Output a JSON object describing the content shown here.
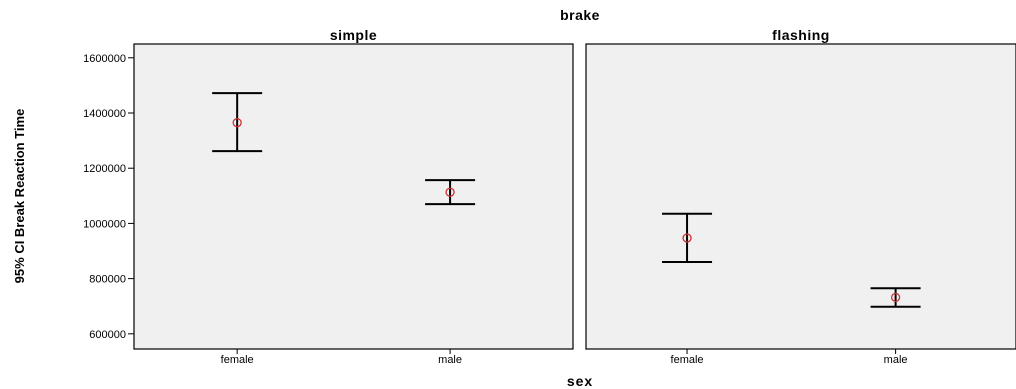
{
  "chart_data": {
    "type": "errorbar",
    "title": "brake",
    "xlabel": "sex",
    "ylabel": "95% CI Break Reaction Time",
    "ylim": [
      545000,
      1650000
    ],
    "yticks": [
      600000,
      800000,
      1000000,
      1200000,
      1400000,
      1600000
    ],
    "ytick_labels": [
      "600000",
      "800000",
      "1000000",
      "1200000",
      "1400000",
      "1600000"
    ],
    "categories": [
      "female",
      "male"
    ],
    "panels": [
      {
        "name": "simple",
        "points": [
          {
            "category": "female",
            "mean": 1365000,
            "lower": 1262000,
            "upper": 1472000
          },
          {
            "category": "male",
            "mean": 1113000,
            "lower": 1070000,
            "upper": 1157000
          }
        ]
      },
      {
        "name": "flashing",
        "points": [
          {
            "category": "female",
            "mean": 947000,
            "lower": 860000,
            "upper": 1035000
          },
          {
            "category": "male",
            "mean": 732000,
            "lower": 698000,
            "upper": 765000
          }
        ]
      }
    ],
    "grid": false,
    "colors": {
      "error_bar": "#000000",
      "mean_marker": "#d03030",
      "panel_background": "#f0f0f0"
    }
  }
}
